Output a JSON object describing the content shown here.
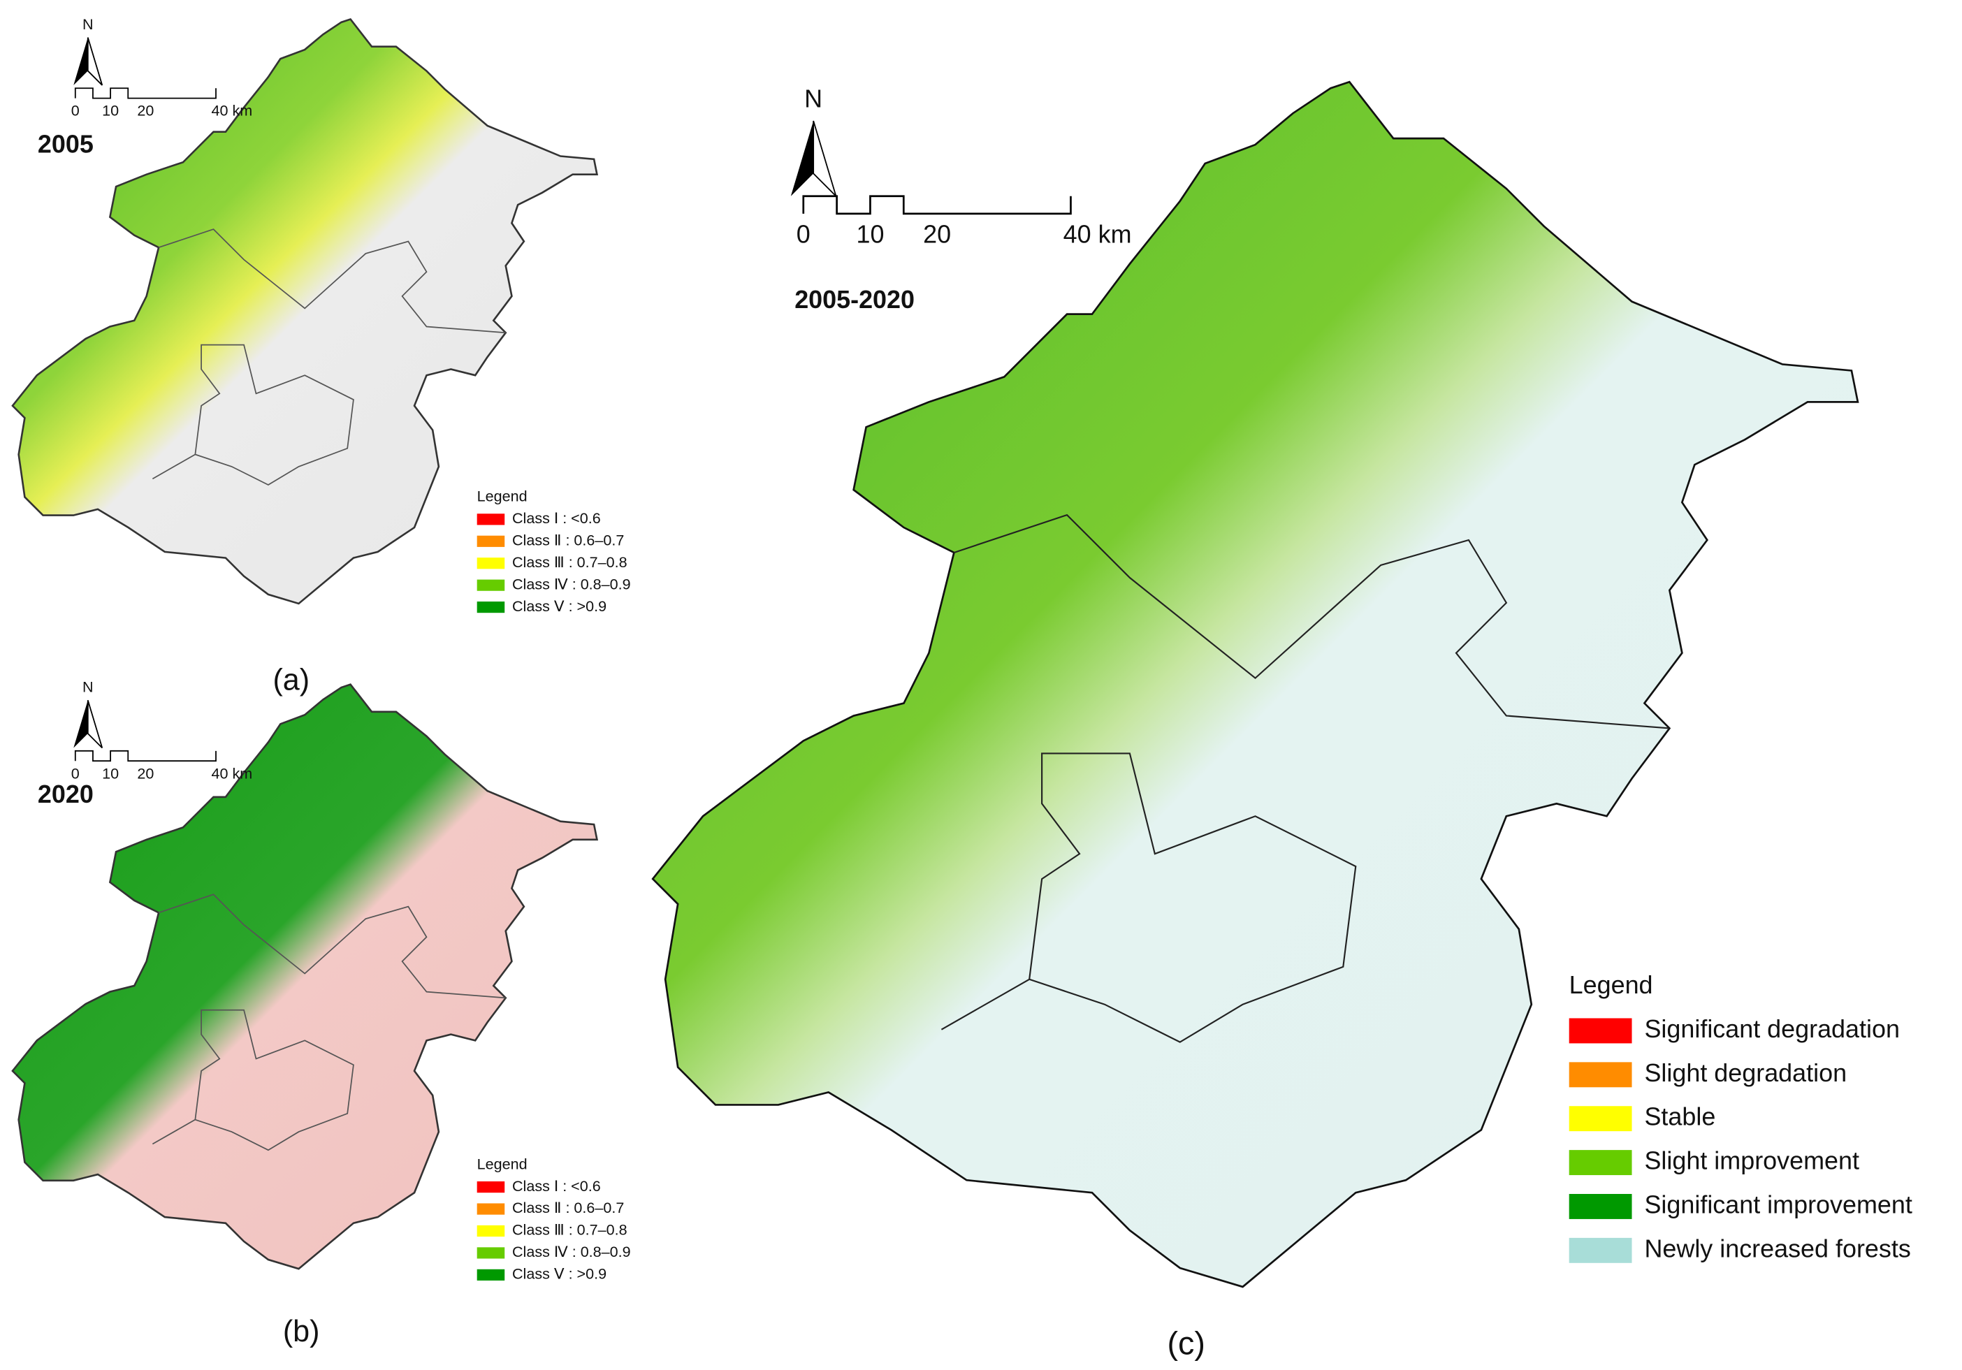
{
  "panels": [
    {
      "label": "(a)",
      "year": "2005",
      "north": "N",
      "scale": [
        "0",
        "10",
        "20",
        "40 km"
      ],
      "legend": {
        "title": "Legend",
        "items": [
          {
            "label": "Class Ⅰ : <0.6",
            "color": "#ff0000"
          },
          {
            "label": "Class Ⅱ : 0.6–0.7",
            "color": "#ff8c00"
          },
          {
            "label": "Class Ⅲ : 0.7–0.8",
            "color": "#ffff00"
          },
          {
            "label": "Class Ⅳ : 0.8–0.9",
            "color": "#66cc00"
          },
          {
            "label": "Class Ⅴ : >0.9",
            "color": "#009900"
          }
        ]
      }
    },
    {
      "label": "(b)",
      "year": "2020",
      "north": "N",
      "scale": [
        "0",
        "10",
        "20",
        "40 km"
      ],
      "legend": {
        "title": "Legend",
        "items": [
          {
            "label": "Class Ⅰ : <0.6",
            "color": "#ff0000"
          },
          {
            "label": "Class Ⅱ : 0.6–0.7",
            "color": "#ff8c00"
          },
          {
            "label": "Class Ⅲ : 0.7–0.8",
            "color": "#ffff00"
          },
          {
            "label": "Class Ⅳ : 0.8–0.9",
            "color": "#66cc00"
          },
          {
            "label": "Class Ⅴ : >0.9",
            "color": "#009900"
          }
        ]
      }
    },
    {
      "label": "(c)",
      "year": "2005-2020",
      "north": "N",
      "scale": [
        "0",
        "10",
        "20",
        "40 km"
      ],
      "legend": {
        "title": "Legend",
        "items": [
          {
            "label": "Significant degradation",
            "color": "#ff0000"
          },
          {
            "label": "Slight degradation",
            "color": "#ff8c00"
          },
          {
            "label": "Stable",
            "color": "#ffff00"
          },
          {
            "label": "Slight improvement",
            "color": "#66cc00"
          },
          {
            "label": "Significant improvement",
            "color": "#009900"
          },
          {
            "label": "Newly increased forests",
            "color": "#a8ddd8"
          }
        ]
      }
    }
  ]
}
